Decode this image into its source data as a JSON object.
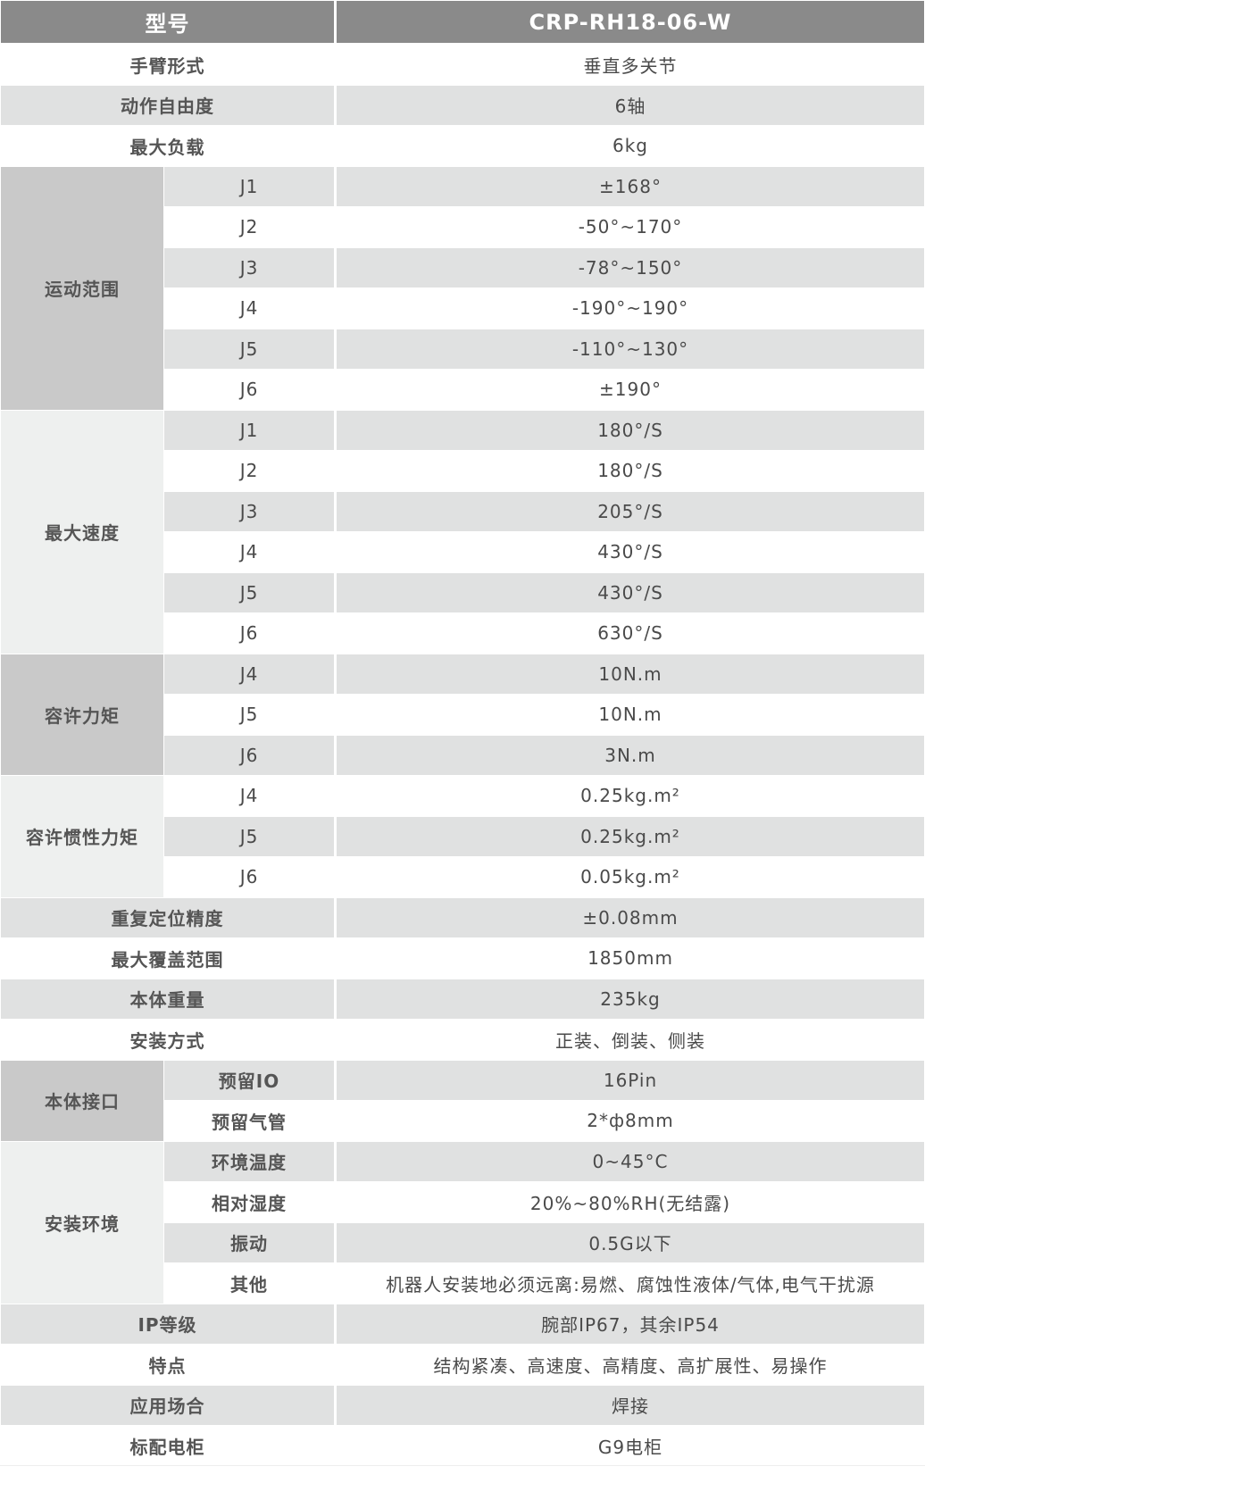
{
  "header": {
    "label": "型号",
    "model": "CRP-RH18-06-W"
  },
  "rows_top": [
    {
      "label": "手臂形式",
      "value": "垂直多关节"
    },
    {
      "label": "动作自由度",
      "value": "6轴"
    },
    {
      "label": "最大负载",
      "value": "6kg"
    }
  ],
  "groups_a": [
    {
      "label": "运动范围",
      "items": [
        {
          "sub": "J1",
          "value": "±168°"
        },
        {
          "sub": "J2",
          "value": "-50°~170°"
        },
        {
          "sub": "J3",
          "value": "-78°~150°"
        },
        {
          "sub": "J4",
          "value": "-190°~190°"
        },
        {
          "sub": "J5",
          "value": "-110°~130°"
        },
        {
          "sub": "J6",
          "value": "±190°"
        }
      ]
    },
    {
      "label": "最大速度",
      "items": [
        {
          "sub": "J1",
          "value": "180°/S"
        },
        {
          "sub": "J2",
          "value": "180°/S"
        },
        {
          "sub": "J3",
          "value": "205°/S"
        },
        {
          "sub": "J4",
          "value": "430°/S"
        },
        {
          "sub": "J5",
          "value": "430°/S"
        },
        {
          "sub": "J6",
          "value": "630°/S"
        }
      ]
    },
    {
      "label": "容许力矩",
      "items": [
        {
          "sub": "J4",
          "value": "10N.m"
        },
        {
          "sub": "J5",
          "value": "10N.m"
        },
        {
          "sub": "J6",
          "value": "3N.m"
        }
      ]
    },
    {
      "label": "容许惯性力矩",
      "items": [
        {
          "sub": "J4",
          "value": "0.25kg.m²"
        },
        {
          "sub": "J5",
          "value": "0.25kg.m²"
        },
        {
          "sub": "J6",
          "value": "0.05kg.m²"
        }
      ]
    }
  ],
  "rows_mid": [
    {
      "label": "重复定位精度",
      "value": "±0.08mm"
    },
    {
      "label": "最大覆盖范围",
      "value": "1850mm"
    },
    {
      "label": "本体重量",
      "value": "235kg"
    },
    {
      "label": "安装方式",
      "value": "正装、倒装、侧装"
    }
  ],
  "groups_b": [
    {
      "label": "本体接口",
      "items": [
        {
          "sub": "预留IO",
          "value": "16Pin"
        },
        {
          "sub": "预留气管",
          "value": "2*ф8mm"
        }
      ]
    },
    {
      "label": "安装环境",
      "items": [
        {
          "sub": "环境温度",
          "value": "0~45°C"
        },
        {
          "sub": "相对湿度",
          "value": "20%~80%RH(无结露)"
        },
        {
          "sub": "振动",
          "value": "0.5G以下"
        },
        {
          "sub": "其他",
          "value": "机器人安装地必须远离:易燃、腐蚀性液体/气体,电气干扰源"
        }
      ]
    }
  ],
  "rows_bottom": [
    {
      "label": "IP等级",
      "value": "腕部IP67，其余IP54"
    },
    {
      "label": "特点",
      "value": "结构紧凑、高速度、高精度、高扩展性、易操作"
    },
    {
      "label": "应用场合",
      "value": "焊接"
    },
    {
      "label": "标配电柜",
      "value": "G9电柜"
    }
  ],
  "colors": {
    "header_bg": "#8a8a8a",
    "stripe": "#e0e1e1",
    "group_dark": "#c9c9c9",
    "group_light": "#eef0ef"
  }
}
